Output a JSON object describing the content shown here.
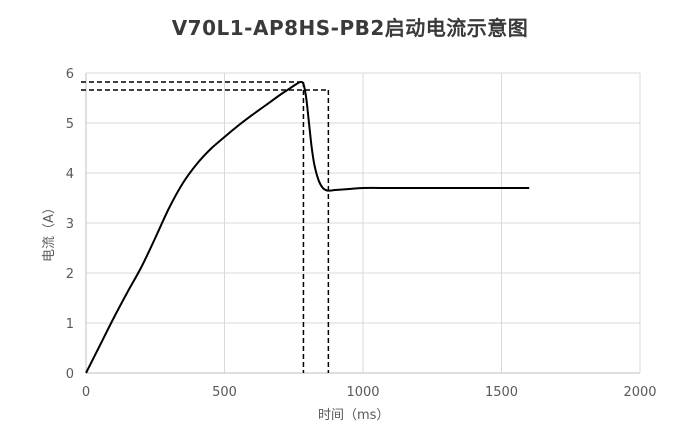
{
  "chart_data": {
    "type": "line",
    "title": "V70L1-AP8HS-PB2启动电流示意图",
    "xlabel": "时间（ms）",
    "ylabel": "电流（A）",
    "xlim": [
      0,
      2000
    ],
    "ylim": [
      0,
      6
    ],
    "xticks": [
      0,
      500,
      1000,
      1500,
      2000
    ],
    "yticks": [
      0,
      1,
      2,
      3,
      4,
      5,
      6
    ],
    "grid": true,
    "colors": {
      "line": "#000000",
      "grid": "#d9d9d9",
      "axis": "#bfbfbf",
      "tick_text": "#595959"
    },
    "series": [
      {
        "x": [
          0,
          50,
          100,
          150,
          200,
          250,
          300,
          350,
          400,
          450,
          500,
          550,
          600,
          650,
          700,
          730,
          760,
          775,
          785,
          795,
          805,
          815,
          825,
          840,
          855,
          870,
          885,
          900,
          950,
          1000,
          1100,
          1200,
          1300,
          1400,
          1500,
          1600
        ],
        "y": [
          0,
          0.55,
          1.1,
          1.62,
          2.12,
          2.7,
          3.3,
          3.8,
          4.18,
          4.48,
          4.72,
          4.95,
          5.16,
          5.36,
          5.56,
          5.67,
          5.78,
          5.82,
          5.78,
          5.5,
          5.0,
          4.5,
          4.15,
          3.85,
          3.7,
          3.65,
          3.65,
          3.66,
          3.68,
          3.7,
          3.7,
          3.7,
          3.7,
          3.7,
          3.7,
          3.7
        ]
      }
    ],
    "reference_lines": [
      {
        "x": 785,
        "y": 5.82
      },
      {
        "x": 875,
        "y": 5.66
      }
    ]
  }
}
